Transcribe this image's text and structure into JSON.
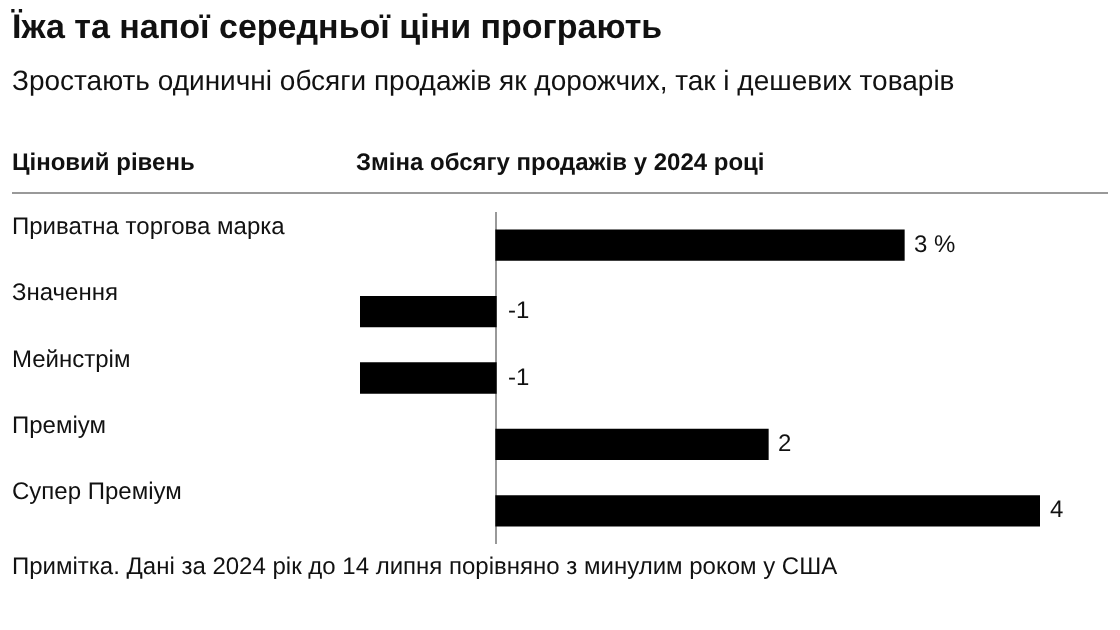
{
  "chart_data": {
    "type": "bar",
    "orientation": "horizontal",
    "title": "Їжа та напої середньої ціни програють",
    "subtitle": "Зростають одиничні обсяги продажів як дорожчих, так і дешевих товарів",
    "ylabel": "Ціновий рівень",
    "xlabel": "Зміна обсягу продажів у 2024 році",
    "categories": [
      "Приватна торгова марка",
      "Значення",
      "Мейнстрім",
      "Преміум",
      "Супер Преміум"
    ],
    "values": [
      3,
      -1,
      -1,
      2,
      4
    ],
    "value_labels": [
      "3 %",
      "-1",
      "-1",
      "2",
      "4"
    ],
    "color": "#000000",
    "grid": false,
    "legend": false,
    "annotations": [
      "Примітка. Дані за 2024 рік до 14 липня порівняно з минулим роком у США"
    ]
  }
}
